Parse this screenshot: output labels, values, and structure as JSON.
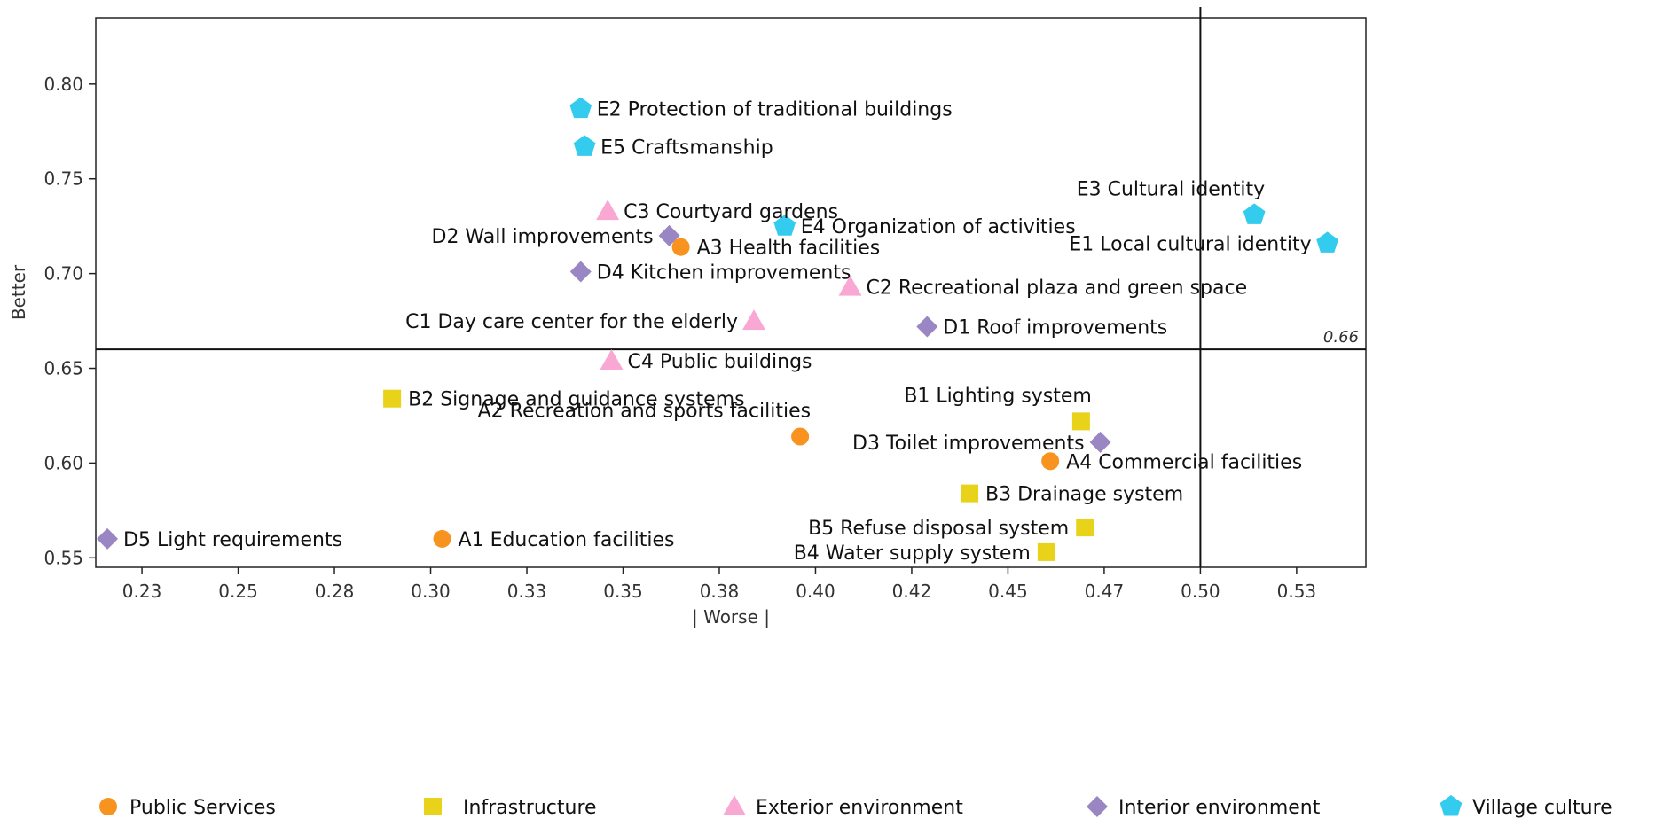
{
  "chart_data": {
    "type": "scatter",
    "title": "",
    "xlabel": "| Worse |",
    "ylabel": "Better",
    "xlim": [
      0.213,
      0.543
    ],
    "ylim": [
      0.545,
      0.835
    ],
    "x_ticks": [
      0.225,
      0.25,
      0.275,
      0.3,
      0.325,
      0.35,
      0.375,
      0.4,
      0.425,
      0.45,
      0.475,
      0.5,
      0.525
    ],
    "x_tick_labels": [
      "0.23",
      "0.25",
      "0.28",
      "0.30",
      "0.33",
      "0.35",
      "0.38",
      "0.40",
      "0.42",
      "0.45",
      "0.47",
      "0.50",
      "0.53"
    ],
    "y_ticks": [
      0.55,
      0.6,
      0.65,
      0.7,
      0.75,
      0.8
    ],
    "y_tick_labels": [
      "0.55",
      "0.60",
      "0.65",
      "0.70",
      "0.75",
      "0.80"
    ],
    "thresholds": {
      "x": 0.5,
      "y": 0.66,
      "y_label": "0.66"
    },
    "categories": [
      {
        "key": "A",
        "name": "Public Services",
        "marker": "circle",
        "color": "#F7931E"
      },
      {
        "key": "B",
        "name": "Infrastructure",
        "marker": "square",
        "color": "#E8D21A"
      },
      {
        "key": "C",
        "name": "Exterior environment",
        "marker": "triangle",
        "color": "#F9A8D4"
      },
      {
        "key": "D",
        "name": "Interior environment",
        "marker": "diamond",
        "color": "#9B86C4"
      },
      {
        "key": "E",
        "name": "Village culture",
        "marker": "pentagon",
        "color": "#33CCEE"
      }
    ],
    "points": [
      {
        "id": "E2",
        "label": "E2 Protection of traditional buildings",
        "category": "E",
        "x": 0.339,
        "y": 0.787,
        "anchor": "right"
      },
      {
        "id": "E5",
        "label": "E5 Craftsmanship",
        "category": "E",
        "x": 0.34,
        "y": 0.767,
        "anchor": "right"
      },
      {
        "id": "E3",
        "label": "E3 Cultural identity",
        "category": "E",
        "x": 0.514,
        "y": 0.731,
        "anchor": "above-left"
      },
      {
        "id": "E1",
        "label": "E1 Local cultural identity",
        "category": "E",
        "x": 0.533,
        "y": 0.716,
        "anchor": "left"
      },
      {
        "id": "E4",
        "label": "E4 Organization of activities",
        "category": "E",
        "x": 0.392,
        "y": 0.725,
        "anchor": "right"
      },
      {
        "id": "C3",
        "label": "C3 Courtyard gardens",
        "category": "C",
        "x": 0.346,
        "y": 0.733,
        "anchor": "right"
      },
      {
        "id": "D2",
        "label": "D2 Wall improvements",
        "category": "D",
        "x": 0.362,
        "y": 0.72,
        "anchor": "left"
      },
      {
        "id": "A3",
        "label": "A3 Health facilities",
        "category": "A",
        "x": 0.365,
        "y": 0.714,
        "anchor": "right"
      },
      {
        "id": "D4",
        "label": "D4 Kitchen improvements",
        "category": "D",
        "x": 0.339,
        "y": 0.701,
        "anchor": "right"
      },
      {
        "id": "C2",
        "label": "C2 Recreational plaza and green space",
        "category": "C",
        "x": 0.409,
        "y": 0.693,
        "anchor": "right"
      },
      {
        "id": "C1",
        "label": "C1 Day care center for the elderly",
        "category": "C",
        "x": 0.384,
        "y": 0.675,
        "anchor": "left"
      },
      {
        "id": "D1",
        "label": "D1 Roof improvements",
        "category": "D",
        "x": 0.429,
        "y": 0.672,
        "anchor": "right"
      },
      {
        "id": "C4",
        "label": "C4 Public buildings",
        "category": "C",
        "x": 0.347,
        "y": 0.654,
        "anchor": "right"
      },
      {
        "id": "B2",
        "label": "B2 Signage and guidance systems",
        "category": "B",
        "x": 0.29,
        "y": 0.634,
        "anchor": "right"
      },
      {
        "id": "B1",
        "label": "B1 Lighting system",
        "category": "B",
        "x": 0.469,
        "y": 0.622,
        "anchor": "above-left"
      },
      {
        "id": "A2",
        "label": "A2 Recreation and sports facilities",
        "category": "A",
        "x": 0.396,
        "y": 0.614,
        "anchor": "above-left"
      },
      {
        "id": "D3",
        "label": "D3 Toilet improvements",
        "category": "D",
        "x": 0.474,
        "y": 0.611,
        "anchor": "left"
      },
      {
        "id": "A4",
        "label": "A4 Commercial facilities",
        "category": "A",
        "x": 0.461,
        "y": 0.601,
        "anchor": "right"
      },
      {
        "id": "B3",
        "label": "B3 Drainage system",
        "category": "B",
        "x": 0.44,
        "y": 0.584,
        "anchor": "right"
      },
      {
        "id": "B5",
        "label": "B5 Refuse disposal system",
        "category": "B",
        "x": 0.47,
        "y": 0.566,
        "anchor": "left"
      },
      {
        "id": "D5",
        "label": "D5 Light requirements",
        "category": "D",
        "x": 0.216,
        "y": 0.56,
        "anchor": "right"
      },
      {
        "id": "A1",
        "label": "A1 Education facilities",
        "category": "A",
        "x": 0.303,
        "y": 0.56,
        "anchor": "right"
      },
      {
        "id": "B4",
        "label": "B4 Water supply system",
        "category": "B",
        "x": 0.46,
        "y": 0.553,
        "anchor": "left"
      }
    ]
  }
}
